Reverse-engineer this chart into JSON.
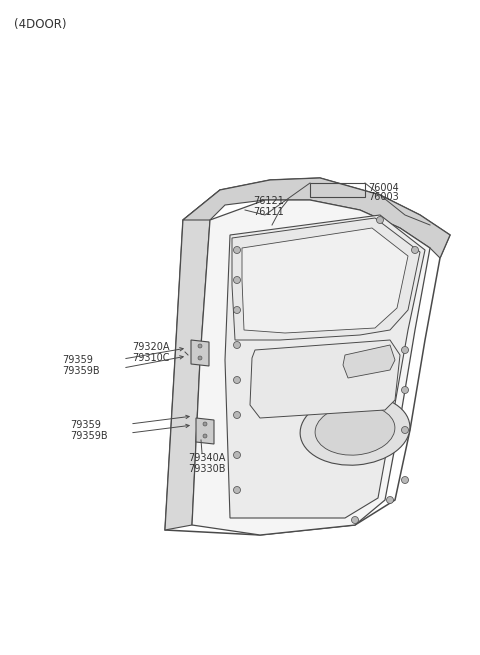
{
  "background_color": "#ffffff",
  "line_color": "#4a4a4a",
  "text_color": "#333333",
  "figsize": [
    4.8,
    6.55
  ],
  "dpi": 100,
  "labels": {
    "top_label": "(4DOOR)",
    "part_76004": "76004",
    "part_76003": "76003",
    "part_76121": "76121",
    "part_76111": "76111",
    "part_79320A": "79320A",
    "part_79310C": "79310C",
    "part_79359_upper": "79359",
    "part_79359B_upper": "79359B",
    "part_79359_lower": "79359",
    "part_79359B_lower": "79359B",
    "part_79340A": "79340A",
    "part_79330B": "79330B"
  },
  "font_size_label": 7.0,
  "font_size_title": 8.5
}
